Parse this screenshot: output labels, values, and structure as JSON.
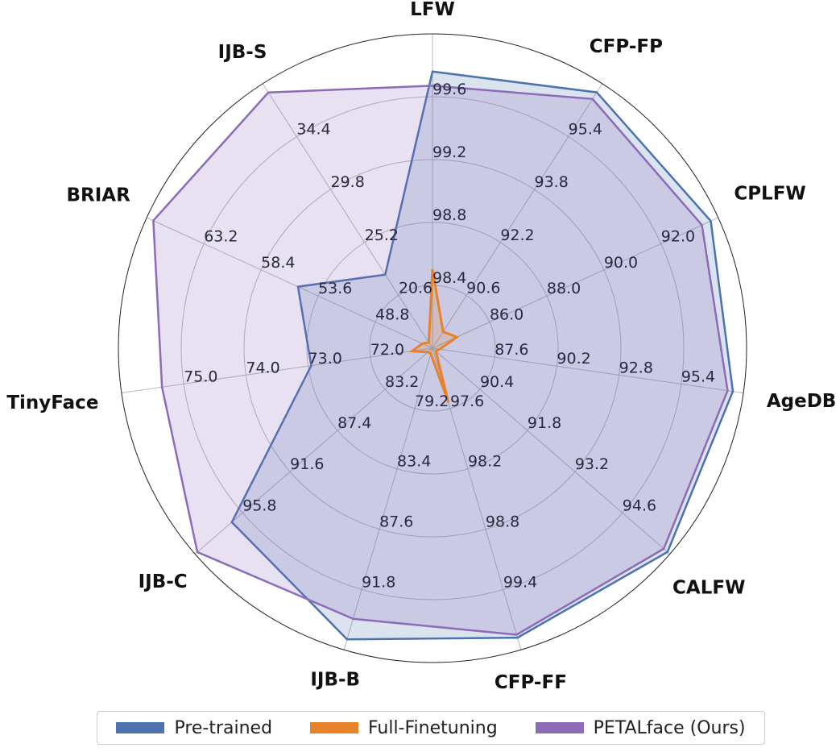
{
  "chart_data": {
    "type": "radar",
    "axes": [
      "LFW",
      "CFP-FP",
      "CPLFW",
      "AgeDB",
      "CALFW",
      "CFP-FF",
      "IJB-B",
      "IJB-C",
      "TinyFace",
      "BRIAR",
      "IJB-S"
    ],
    "ring_labels": [
      [
        "98.4",
        "98.8",
        "99.2",
        "99.6"
      ],
      [
        "90.6",
        "92.2",
        "93.8",
        "95.4"
      ],
      [
        "86.0",
        "88.0",
        "90.0",
        "92.0"
      ],
      [
        "87.6",
        "90.2",
        "92.8",
        "95.4"
      ],
      [
        "90.4",
        "91.8",
        "93.2",
        "94.6"
      ],
      [
        "97.6",
        "98.2",
        "98.8",
        "99.4"
      ],
      [
        "79.2",
        "83.4",
        "87.6",
        "91.8"
      ],
      [
        "83.2",
        "87.4",
        "91.6",
        "95.8"
      ],
      [
        "72.0",
        "73.0",
        "74.0",
        "75.0"
      ],
      [
        "48.8",
        "53.6",
        "58.4",
        "63.2"
      ],
      [
        "20.6",
        "25.2",
        "29.8",
        "34.4"
      ]
    ],
    "axis_ranges": [
      [
        98.0,
        100.0
      ],
      [
        89.0,
        97.0
      ],
      [
        84.0,
        94.0
      ],
      [
        85.0,
        98.0
      ],
      [
        89.0,
        96.0
      ],
      [
        97.0,
        100.0
      ],
      [
        75.0,
        96.0
      ],
      [
        79.0,
        100.0
      ],
      [
        71.0,
        76.0
      ],
      [
        44.0,
        68.0
      ],
      [
        16.0,
        39.0
      ]
    ],
    "series": [
      {
        "name": "Pre-trained",
        "color": "#4c72b0",
        "fill": "#4c72b0",
        "values": [
          99.76,
          96.74,
          93.74,
          97.56,
          95.93,
          99.88,
          95.27,
          96.75,
          72.95,
          55.3,
          22.4
        ]
      },
      {
        "name": "Full-Finetuning",
        "color": "#e6832a",
        "fill": "#e6832a",
        "values": [
          98.5,
          89.5,
          84.85,
          85.3,
          89.1,
          97.54,
          75.4,
          79.4,
          71.33,
          44.84,
          16.5
        ]
      },
      {
        "name": "PETALface (Ours)",
        "color": "#8c6bb8",
        "fill": "#8c6bb8",
        "values": [
          99.67,
          96.54,
          93.43,
          97.34,
          95.82,
          99.85,
          93.84,
          99.8,
          75.35,
          67.45,
          38.24
        ]
      }
    ],
    "grid": true,
    "legend": "bottom"
  }
}
